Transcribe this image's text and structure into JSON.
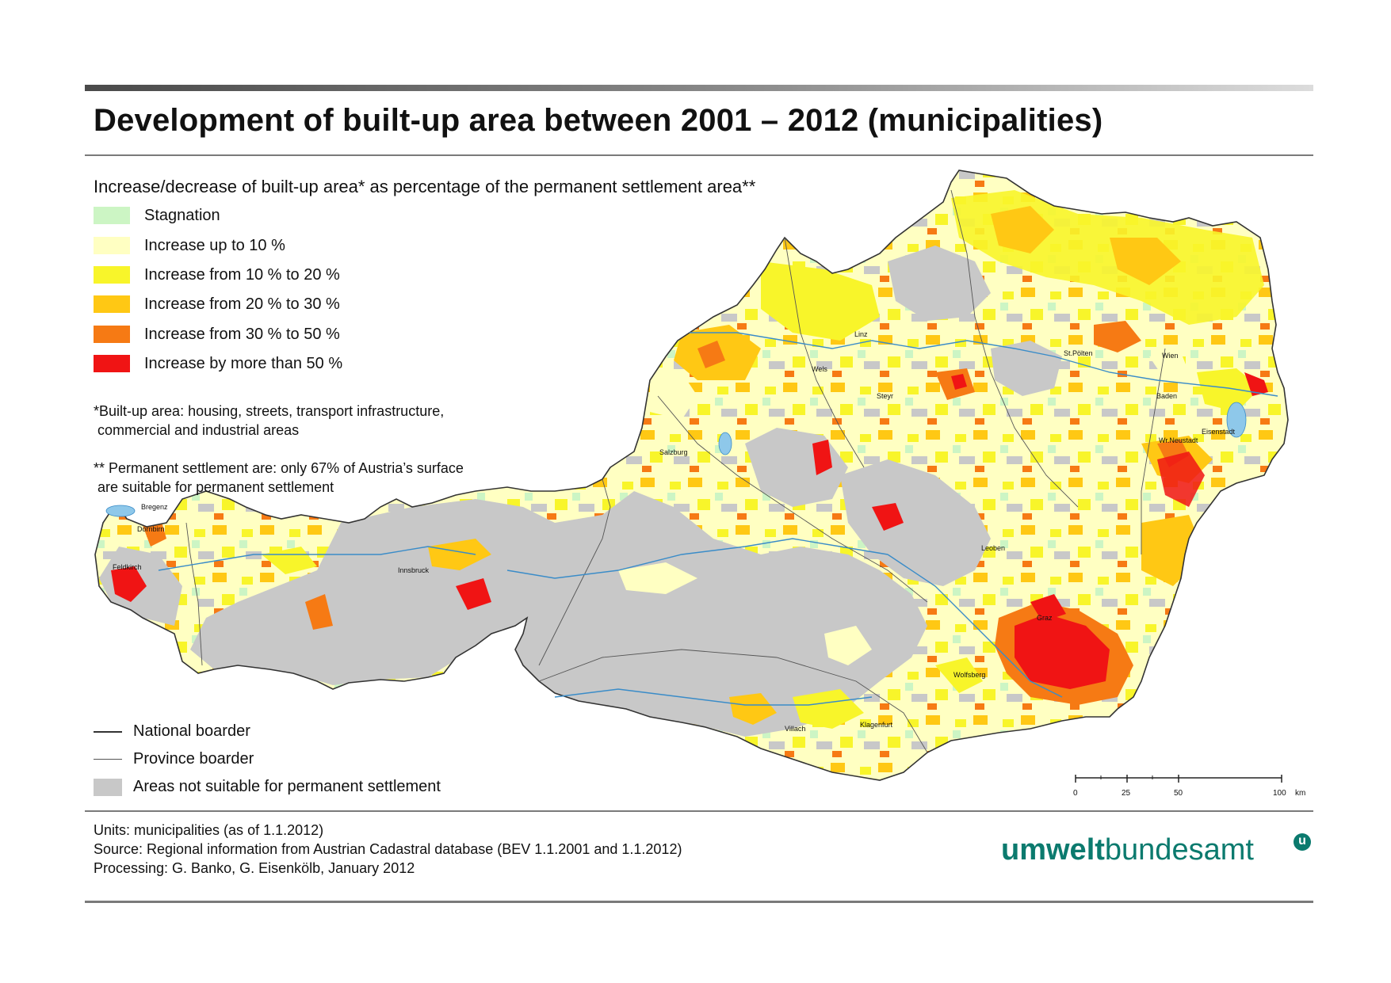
{
  "title": "Development of built-up area between 2001 – 2012 (municipalities)",
  "legend": {
    "subtitle": "Increase/decrease of built-up area* as percentage of the permanent settlement area**",
    "classes": [
      {
        "label": "Stagnation",
        "color": "#ccf5c4"
      },
      {
        "label": "Increase up to 10 %",
        "color": "#ffffc2"
      },
      {
        "label": "Increase from 10 % to 20 %",
        "color": "#f8f52a"
      },
      {
        "label": "Increase from 20 % to 30 %",
        "color": "#ffc814"
      },
      {
        "label": "Increase from 30 % to 50 %",
        "color": "#f67a14"
      },
      {
        "label": "Increase by more than 50 %",
        "color": "#f01414"
      }
    ],
    "notes": {
      "built_up": "*Built-up area: housing, streets, transport infrastructure,\n commercial and industrial areas",
      "permanent": "** Permanent settlement are: only 67% of Austria’s surface\n are suitable for permanent settlement"
    },
    "lines": {
      "national": "National boarder",
      "province": "Province boarder",
      "not_suitable": "Areas not suitable for permanent settlement",
      "not_suitable_color": "#c8c8c8"
    }
  },
  "cities": [
    "Bregenz",
    "Dornbirn",
    "Feldkirch",
    "Innsbruck",
    "Salzburg",
    "Linz",
    "Wels",
    "Steyr",
    "St.Pölten",
    "Wien",
    "Baden",
    "Wr.Neustadt",
    "Eisenstadt",
    "Leoben",
    "Graz",
    "Wolfsberg",
    "Villach",
    "Klagenfurt"
  ],
  "scale": {
    "ticks": [
      "0",
      "25",
      "50",
      "100"
    ],
    "unit": "km"
  },
  "footer": {
    "units": "Units: municipalities (as of 1.1.2012)",
    "source": "Source: Regional information from Austrian Cadastral database (BEV 1.1.2001 and 1.1.2012)",
    "processing": "Processing: G. Banko, G. Eisenkölb, January 2012"
  },
  "logo": {
    "part1": "umwelt",
    "part2": "bundesamt",
    "badge": "u"
  }
}
